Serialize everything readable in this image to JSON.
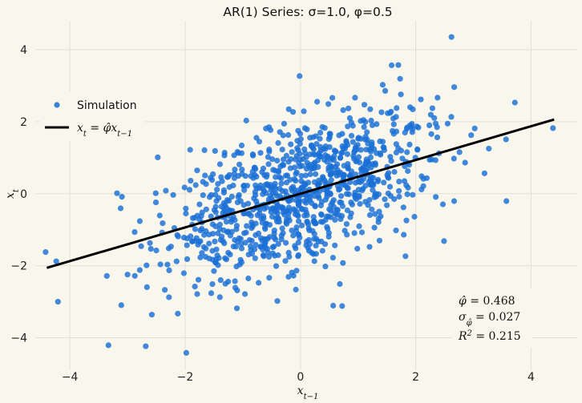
{
  "chart_data": {
    "type": "scatter",
    "title": "AR(1) Series: σ=1.0, φ=0.5",
    "xlabel": "x_{t-1}",
    "ylabel": "x_t",
    "xlim": [
      -4.6,
      4.8
    ],
    "ylim": [
      -4.9,
      4.8
    ],
    "xticks": [
      -4,
      -2,
      0,
      2,
      4
    ],
    "yticks": [
      -4,
      -2,
      0,
      2,
      4
    ],
    "grid": true,
    "legend_position": "upper-left",
    "colors": {
      "scatter": "#1a6fd6",
      "line": "#000000",
      "background": "#f9f7ec"
    },
    "series": [
      {
        "name": "Simulation",
        "kind": "scatter",
        "n": 1000,
        "mean": 0.0,
        "phi": 0.5,
        "sigma": 1.0
      },
      {
        "name": "x_t = φ̂ x_{t-1}",
        "kind": "line",
        "x": [
          -4.4,
          4.4
        ],
        "y": [
          -2.06,
          2.06
        ]
      }
    ],
    "highlighted_points": [
      {
        "x": 2.62,
        "y": 4.35
      },
      {
        "x": -1.98,
        "y": -4.42
      },
      {
        "x": 4.38,
        "y": 1.82
      },
      {
        "x": -4.42,
        "y": -1.62
      },
      {
        "x": 3.72,
        "y": 2.53
      },
      {
        "x": -0.4,
        "y": -2.98
      }
    ],
    "annotations": {
      "phi_hat": "φ̂ = 0.468",
      "sigma_phi": "σ_φ̂ = 0.027",
      "r_squared": "R² = 0.215"
    }
  },
  "legend": {
    "scatter_label": "Simulation",
    "line_label_main": "x",
    "line_label_sub": "t",
    "line_label_eq": " = ",
    "line_label_phi": "φ̂",
    "line_label_x2": "x",
    "line_label_sub2": "t−1"
  },
  "stats": {
    "phi_symbol": "φ̂",
    "phi_value": " = 0.468",
    "sigma_symbol": "σ",
    "sigma_sub": "φ̂",
    "sigma_value": " = 0.027",
    "r2_symbol": "R",
    "r2_sup": "2",
    "r2_value": " = 0.215"
  },
  "axes": {
    "x_label_main": "x",
    "x_label_sub": "t−1",
    "y_label_main": "x",
    "y_label_sub": "t"
  }
}
